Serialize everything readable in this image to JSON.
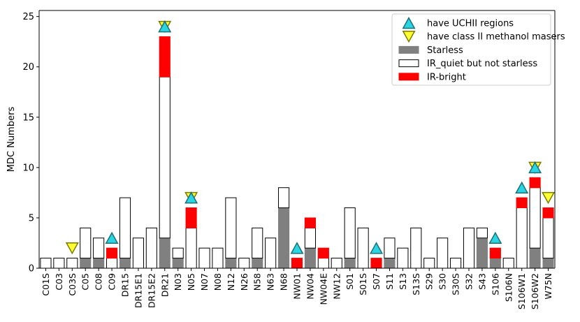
{
  "chart_data": {
    "type": "bar",
    "stacked": true,
    "ylabel": "MDC Numbers",
    "xlabel": "",
    "ylim": [
      0,
      25.6
    ],
    "yticks": [
      0,
      5,
      10,
      15,
      20,
      25
    ],
    "grid": false,
    "legend_position": "top-right",
    "categories": [
      "C01S",
      "C03",
      "C03S",
      "C05",
      "C08",
      "C09",
      "DR15",
      "DR15E1",
      "DR15E2",
      "DR21",
      "N03",
      "N05",
      "N07",
      "N08",
      "N12",
      "N26",
      "N58",
      "N63",
      "N68",
      "NW01",
      "NW04",
      "NW04E",
      "NW12",
      "S01",
      "S01S",
      "S07",
      "S11",
      "S13",
      "S13S",
      "S29",
      "S30",
      "S30S",
      "S32",
      "S43",
      "S106",
      "S106N",
      "S106W1",
      "S106W2",
      "W75N"
    ],
    "series": [
      {
        "name": "Starless",
        "color": "#808080",
        "values": [
          0,
          0,
          0,
          1,
          1,
          0,
          1,
          0,
          0,
          3,
          1,
          0,
          0,
          0,
          1,
          0,
          1,
          0,
          6,
          0,
          2,
          0,
          0,
          1,
          0,
          0,
          1,
          0,
          0,
          0,
          0,
          0,
          0,
          3,
          1,
          0,
          0,
          2,
          1
        ]
      },
      {
        "name": "IR_quiet but not starless",
        "color": "#ffffff",
        "values": [
          1,
          1,
          1,
          3,
          2,
          1,
          6,
          3,
          4,
          16,
          1,
          4,
          2,
          2,
          6,
          1,
          3,
          3,
          2,
          0,
          2,
          1,
          1,
          5,
          4,
          0,
          2,
          2,
          4,
          1,
          3,
          1,
          4,
          1,
          0,
          1,
          6,
          6,
          4
        ]
      },
      {
        "name": "IR-bright",
        "color": "#ff0000",
        "values": [
          0,
          0,
          0,
          0,
          0,
          1,
          0,
          0,
          0,
          4,
          0,
          2,
          0,
          0,
          0,
          0,
          0,
          0,
          0,
          1,
          1,
          1,
          0,
          0,
          0,
          1,
          0,
          0,
          0,
          0,
          0,
          0,
          0,
          0,
          1,
          0,
          1,
          1,
          1
        ]
      }
    ],
    "markers": [
      {
        "name": "have UCHII regions",
        "symbol": "triangle-up",
        "color": "#2ad4e0",
        "categories": [
          "C09",
          "DR21",
          "N05",
          "NW01",
          "S07",
          "S106",
          "S106W1",
          "S106W2"
        ]
      },
      {
        "name": "have class II methanol masers",
        "symbol": "triangle-down",
        "color": "#ffff33",
        "categories": [
          "C03S",
          "DR21",
          "N05",
          "S106W2",
          "W75N"
        ]
      }
    ]
  }
}
